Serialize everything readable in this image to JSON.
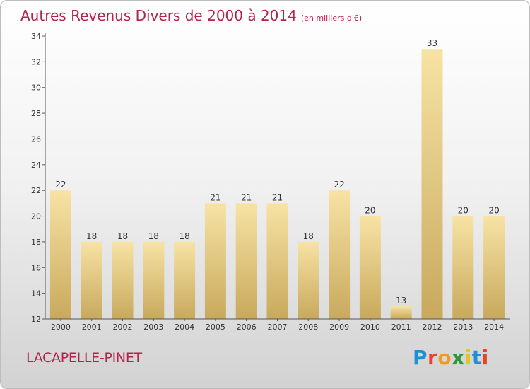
{
  "title": "Autres Revenus Divers de 2000 à 2014",
  "unit": "(en milliers d'€)",
  "commune": "LACAPELLE-PINET",
  "logo": {
    "text": "Proxiti",
    "colors": [
      "#1f8fd6",
      "#e7432b",
      "#f29a1f",
      "#2a9b3a",
      "#e2c51d",
      "#1f8fd6",
      "#e7432b"
    ]
  },
  "colors": {
    "title": "#b5224a",
    "bar_light": "#f7e3a4",
    "bar_dark": "#c8a95d"
  },
  "chart_data": {
    "type": "bar",
    "categories": [
      "2000",
      "2001",
      "2002",
      "2003",
      "2004",
      "2005",
      "2006",
      "2007",
      "2008",
      "2009",
      "2010",
      "2011",
      "2012",
      "2013",
      "2014"
    ],
    "values": [
      22,
      18,
      18,
      18,
      18,
      21,
      21,
      21,
      18,
      22,
      20,
      13,
      33,
      20,
      20
    ],
    "ylim": [
      12,
      34
    ],
    "yticks": [
      12,
      14,
      16,
      18,
      20,
      22,
      24,
      26,
      28,
      30,
      32,
      34
    ],
    "grid": false,
    "legend": "none"
  }
}
